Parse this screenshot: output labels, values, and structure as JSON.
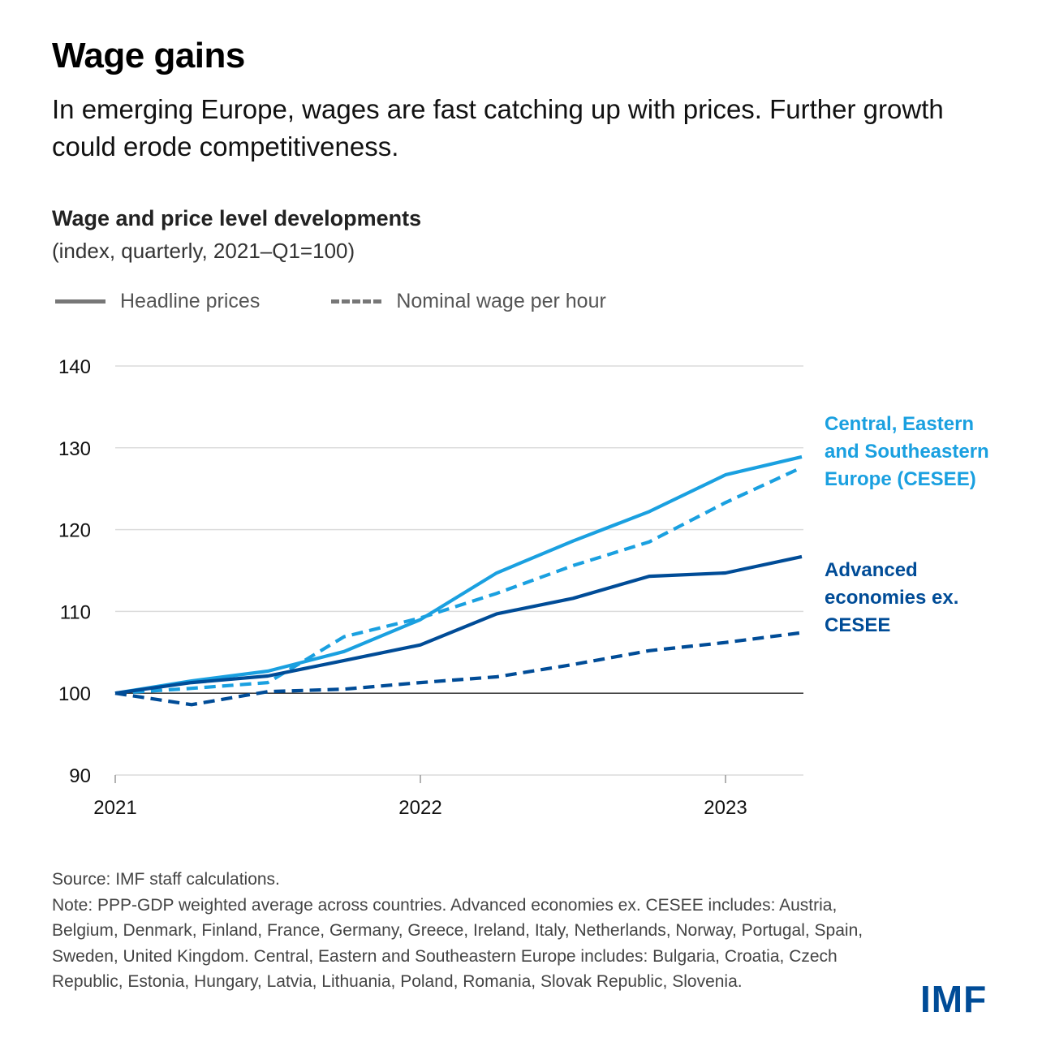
{
  "header": {
    "title": "Wage gains",
    "subtitle": "In emerging Europe, wages are fast catching up with prices. Further growth could erode competitiveness."
  },
  "chart_data": {
    "type": "line",
    "title": "Wage and price level developments",
    "subtitle": "(index, quarterly, 2021–Q1=100)",
    "xlabel": "",
    "ylabel": "",
    "x": [
      "2021-Q1",
      "2021-Q2",
      "2021-Q3",
      "2021-Q4",
      "2022-Q1",
      "2022-Q2",
      "2022-Q3",
      "2022-Q4",
      "2023-Q1",
      "2023-Q2"
    ],
    "x_tick_labels": [
      {
        "label": "2021",
        "index": 0
      },
      {
        "label": "2022",
        "index": 4
      },
      {
        "label": "2023",
        "index": 8
      }
    ],
    "ylim": [
      90,
      140
    ],
    "y_ticks": [
      90,
      100,
      110,
      120,
      130,
      140
    ],
    "grid": true,
    "reference_line": 100,
    "legend": {
      "placement": "top-left",
      "entries": [
        {
          "label": "Headline prices",
          "style": "solid"
        },
        {
          "label": "Nominal wage per hour",
          "style": "dashed"
        }
      ]
    },
    "series": [
      {
        "name": "CESEE headline prices",
        "group": "Central, Eastern and Southeastern Europe (CESEE)",
        "style": "solid",
        "color": "#1aa0e0",
        "values": [
          100,
          101.5,
          102.7,
          105.1,
          109.0,
          114.7,
          118.6,
          122.2,
          126.7,
          128.9
        ]
      },
      {
        "name": "CESEE nominal wage per hour",
        "group": "Central, Eastern and Southeastern Europe (CESEE)",
        "style": "dashed",
        "color": "#1aa0e0",
        "values": [
          100,
          100.6,
          101.3,
          106.9,
          109.2,
          112.2,
          115.6,
          118.5,
          123.3,
          127.6
        ]
      },
      {
        "name": "AE headline prices",
        "group": "Advanced economies ex. CESEE",
        "style": "solid",
        "color": "#004c97",
        "values": [
          100,
          101.3,
          102.1,
          104.0,
          105.9,
          109.7,
          111.6,
          114.3,
          114.7,
          116.7
        ]
      },
      {
        "name": "AE nominal wage per hour",
        "group": "Advanced economies ex. CESEE",
        "style": "dashed",
        "color": "#004c97",
        "values": [
          100,
          98.6,
          100.2,
          100.5,
          101.3,
          102.0,
          103.5,
          105.2,
          106.2,
          107.4
        ]
      }
    ],
    "annotations": [
      {
        "text": "Central, Eastern and Southeastern Europe (CESEE)",
        "lines": [
          "Central, Eastern",
          "and Southeastern",
          "Europe (CESEE)"
        ],
        "color": "#1aa0e0"
      },
      {
        "text": "Advanced economies ex. CESEE",
        "lines": [
          "Advanced",
          "economies ex.",
          "CESEE"
        ],
        "color": "#004c97"
      }
    ]
  },
  "footer": {
    "source": "Source: IMF staff calculations.",
    "note": "Note: PPP-GDP weighted average across countries. Advanced economies ex. CESEE includes: Austria, Belgium, Denmark, Finland, France, Germany, Greece, Ireland, Italy, Netherlands, Norway, Portugal, Spain, Sweden, United Kingdom. Central, Eastern and Southeastern Europe includes: Bulgaria, Croatia, Czech Republic, Estonia, Hungary, Latvia, Lithuania, Poland, Romania, Slovak Republic, Slovenia.",
    "logo": "IMF"
  },
  "colors": {
    "cesee": "#1aa0e0",
    "advanced": "#004c97",
    "legend_gray": "#777777",
    "grid": "#dddddd"
  }
}
